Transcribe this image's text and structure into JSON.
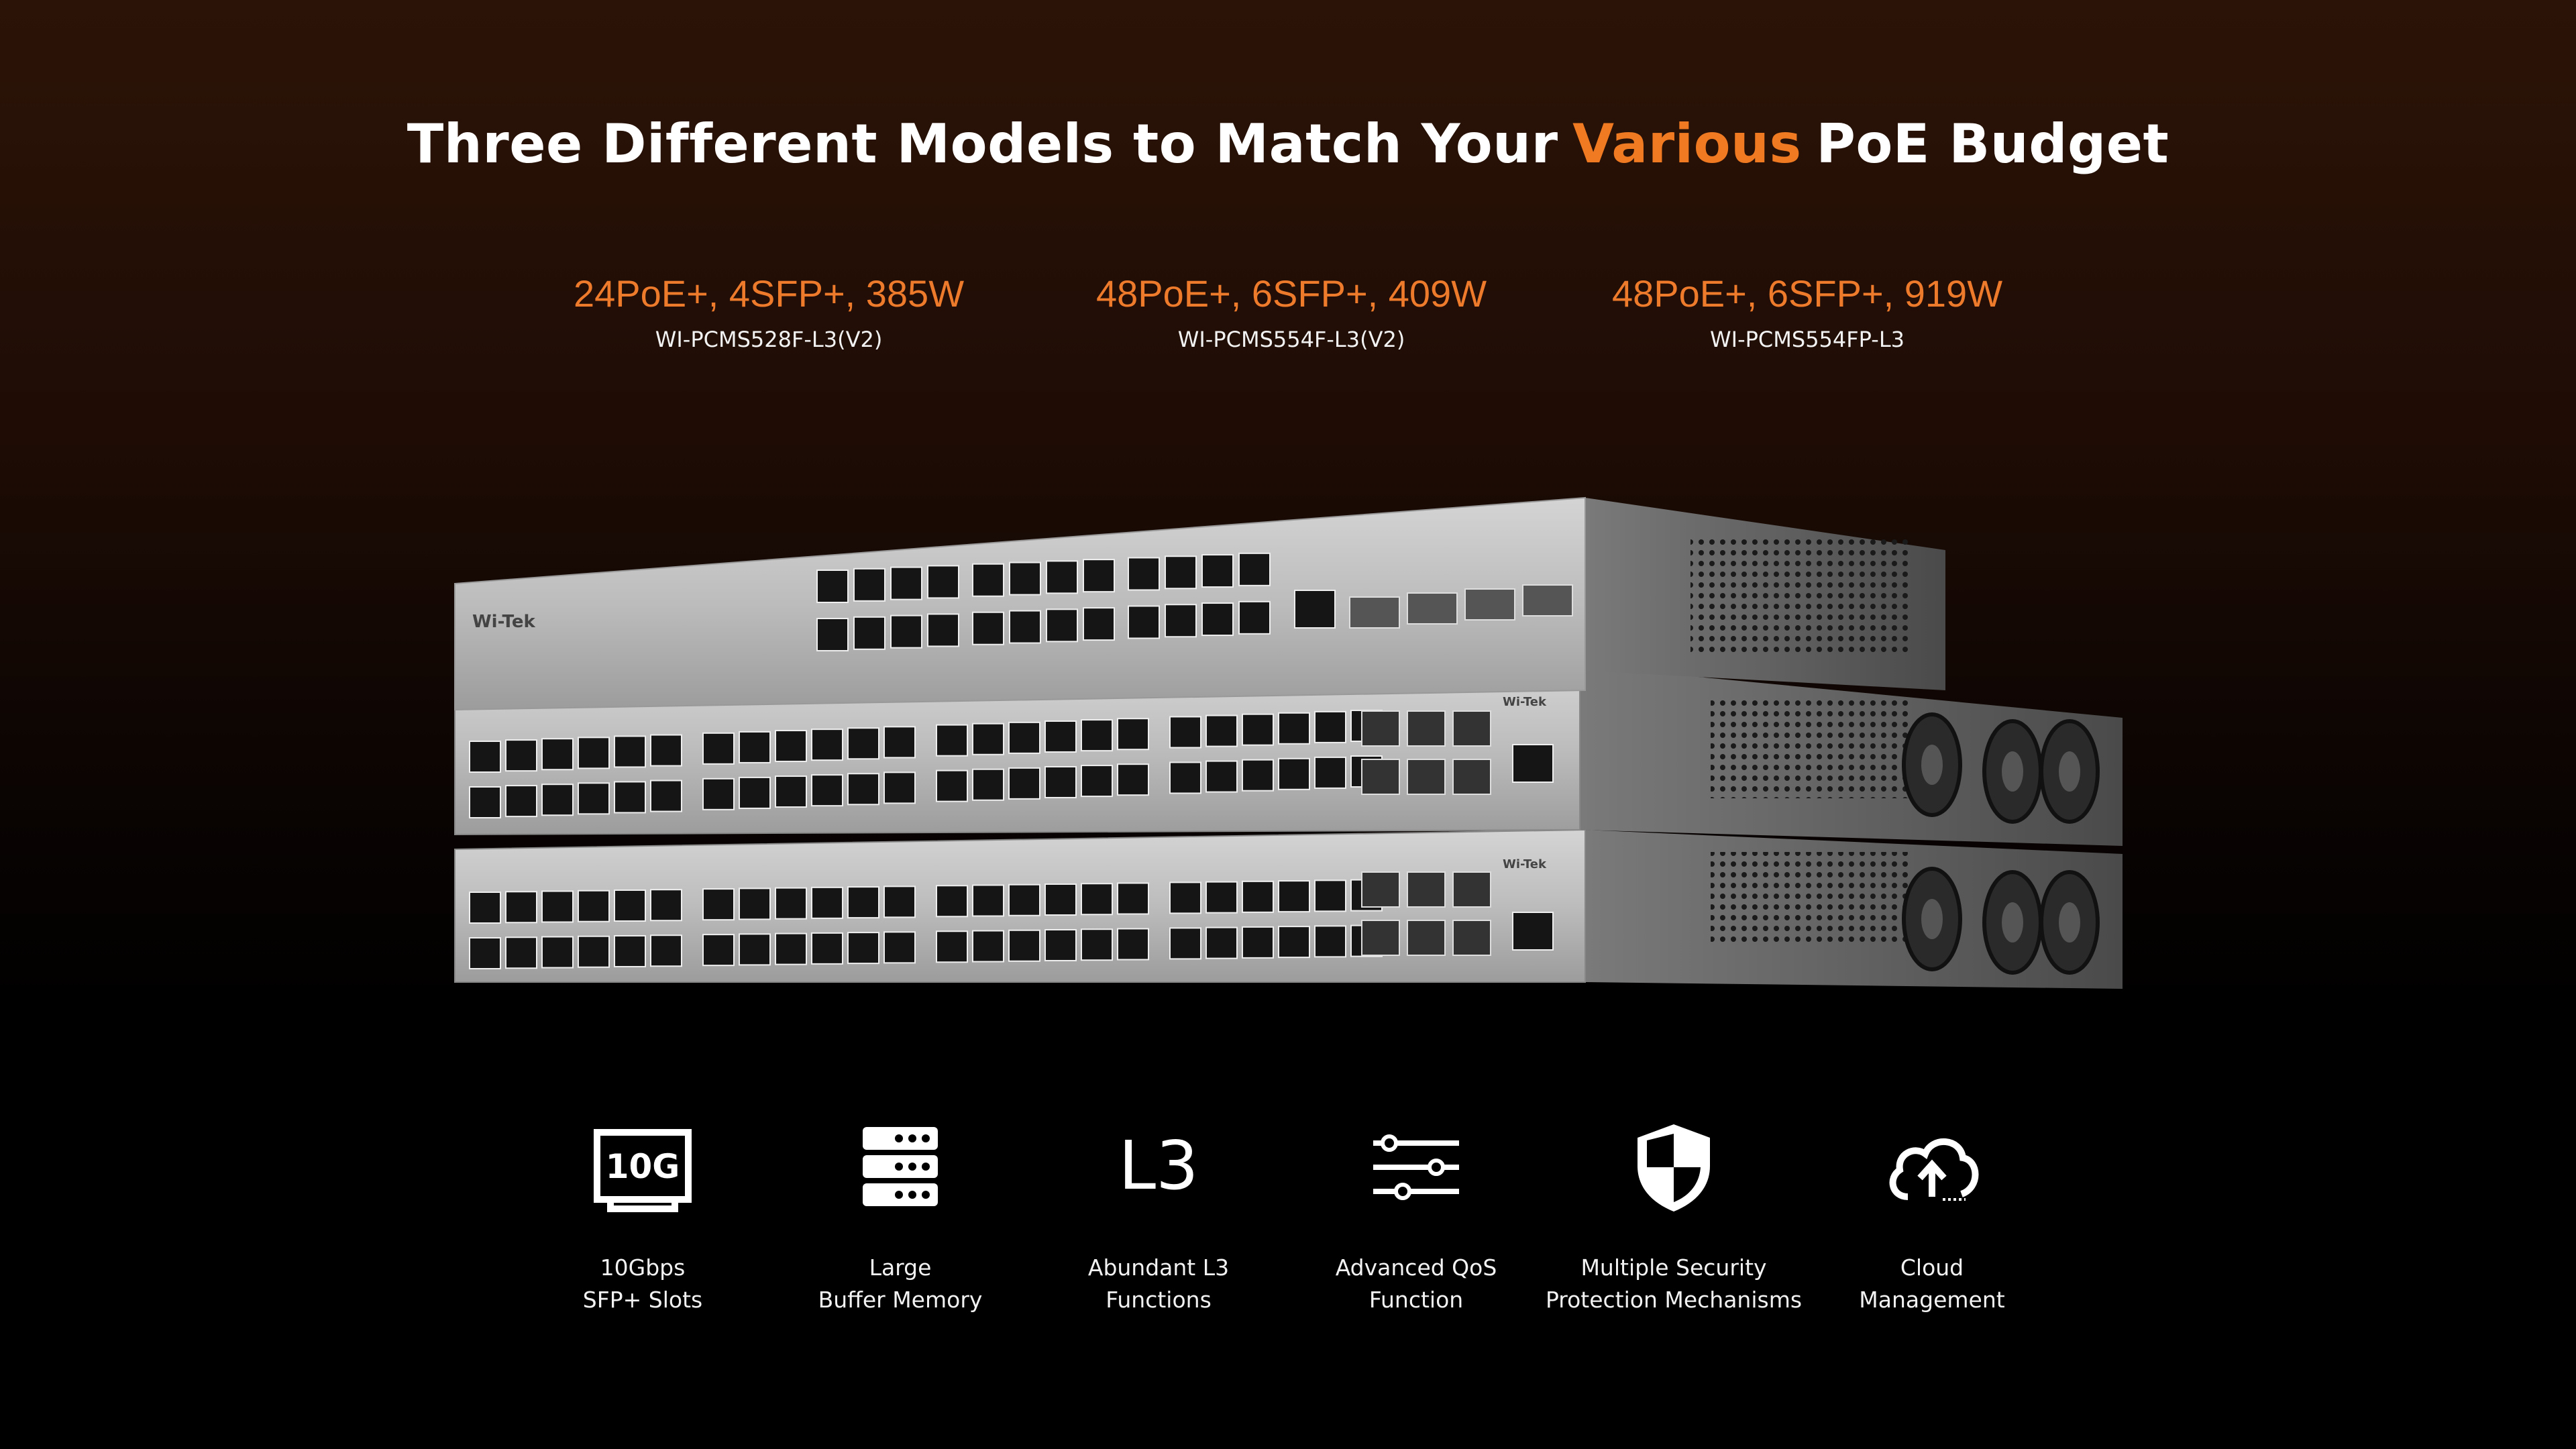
{
  "title": {
    "before": "Three Different Models to Match Your",
    "highlight": "Various",
    "after": "PoE Budget"
  },
  "models": [
    {
      "spec": "24PoE+, 4SFP+, 385W",
      "name": "WI-PCMS528F-L3(V2)"
    },
    {
      "spec": "48PoE+, 6SFP+, 409W",
      "name": "WI-PCMS554F-L3(V2)"
    },
    {
      "spec": "48PoE+, 6SFP+, 919W",
      "name": "WI-PCMS554FP-L3"
    }
  ],
  "brand": "Wi-Tek",
  "features": [
    {
      "icon_text": "10G",
      "lines": [
        "10Gbps",
        "SFP+ Slots"
      ]
    },
    {
      "lines": [
        "Large",
        "Buffer Memory"
      ]
    },
    {
      "icon_text": "L3",
      "lines": [
        "Abundant L3",
        "Functions"
      ]
    },
    {
      "lines": [
        "Advanced QoS",
        "Function"
      ]
    },
    {
      "lines": [
        "Multiple Security",
        "Protection Mechanisms"
      ]
    },
    {
      "lines": [
        "Cloud",
        "Management"
      ]
    }
  ]
}
